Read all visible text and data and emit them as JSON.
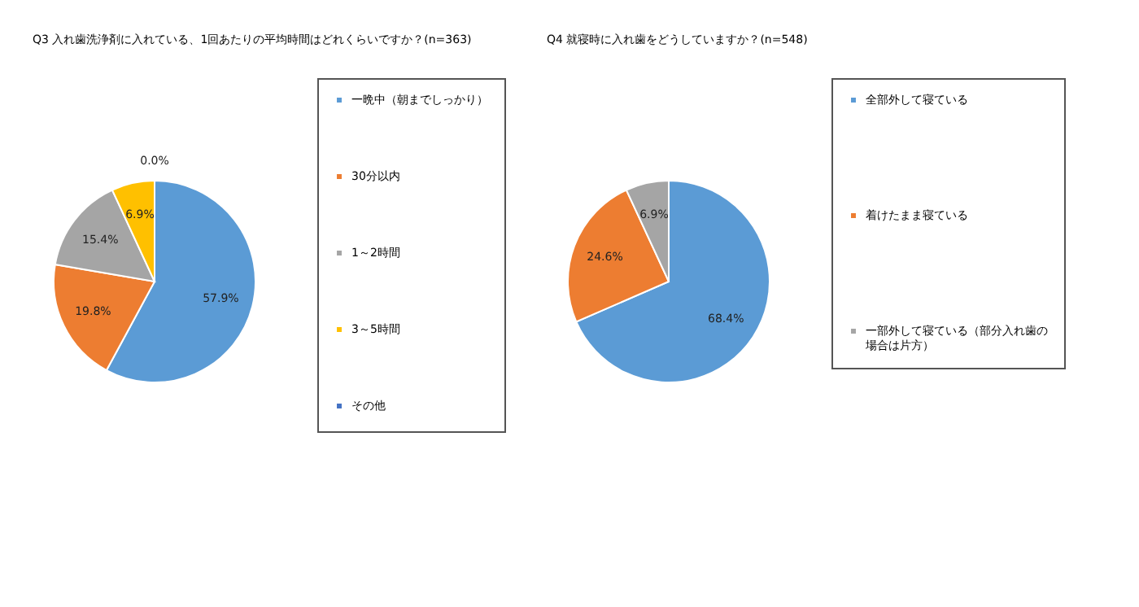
{
  "chart_data": [
    {
      "type": "pie",
      "title": "Q3 入れ歯洗浄剤に入れている、1回あたりの平均時間はどれくらいですか？(n=363)",
      "categories": [
        "一晩中（朝までしっかり）",
        "30分以内",
        "1～2時間",
        "3～5時間",
        "その他"
      ],
      "values": [
        57.9,
        19.8,
        15.4,
        6.9,
        0.0
      ],
      "value_labels": [
        "57.9%",
        "19.8%",
        "15.4%",
        "6.9%",
        "0.0%"
      ],
      "colors": [
        "#5b9bd5",
        "#ed7d31",
        "#a5a5a5",
        "#ffc000",
        "#4472c4"
      ],
      "legend": "right"
    },
    {
      "type": "pie",
      "title": "Q4 就寝時に入れ歯をどうしていますか？(n=548)",
      "categories": [
        "全部外して寝ている",
        "着けたまま寝ている",
        "一部外して寝ている（部分入れ歯の場合は片方）"
      ],
      "values": [
        68.4,
        24.6,
        6.9
      ],
      "value_labels": [
        "68.4%",
        "24.6%",
        "6.9%"
      ],
      "colors": [
        "#5b9bd5",
        "#ed7d31",
        "#a5a5a5"
      ],
      "legend": "right"
    }
  ]
}
